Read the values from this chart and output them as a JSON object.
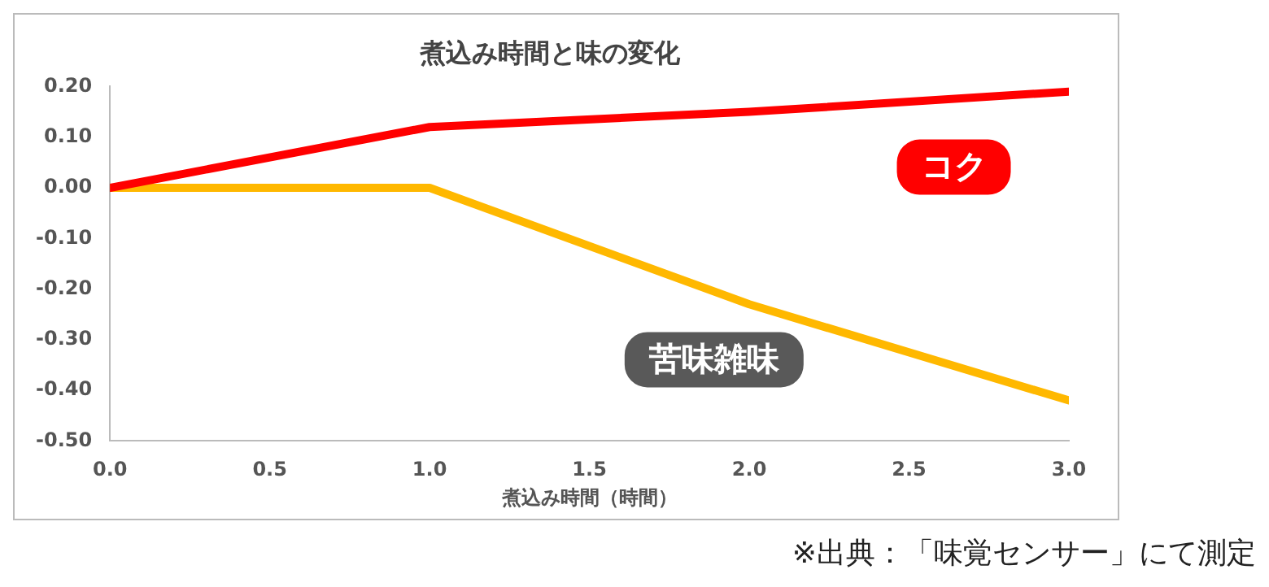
{
  "chart_data": {
    "type": "line",
    "title": "煮込み時間と味の変化",
    "xlabel": "煮込み時間（時間）",
    "x": [
      0,
      1,
      2,
      3
    ],
    "series": [
      {
        "name": "コク",
        "color": "#ff0000",
        "values": [
          0,
          0.12,
          0.15,
          0.19
        ]
      },
      {
        "name": "苦味雑味",
        "color": "#ffb800",
        "values": [
          0,
          0,
          -0.23,
          -0.42
        ]
      }
    ],
    "xlim": [
      0,
      3
    ],
    "xticks": [
      {
        "value": 0,
        "label": "0.0"
      },
      {
        "value": 0.5,
        "label": "0.5"
      },
      {
        "value": 1,
        "label": "1.0"
      },
      {
        "value": 1.5,
        "label": "1.5"
      },
      {
        "value": 2,
        "label": "2.0"
      },
      {
        "value": 2.5,
        "label": "2.5"
      },
      {
        "value": 3,
        "label": "3.0"
      }
    ],
    "ylim": [
      -0.5,
      0.2
    ],
    "yticks": [
      {
        "value": -0.5,
        "label": "-0.50"
      },
      {
        "value": -0.4,
        "label": "-0.40"
      },
      {
        "value": -0.3,
        "label": "-0.30"
      },
      {
        "value": -0.2,
        "label": "-0.20"
      },
      {
        "value": -0.1,
        "label": "-0.10"
      },
      {
        "value": 0,
        "label": "0.00"
      },
      {
        "value": 0.1,
        "label": "0.10"
      },
      {
        "value": 0.2,
        "label": "0.20"
      }
    ],
    "grid": false,
    "legend": false,
    "marker": "none",
    "line_style": "solid",
    "annotations": [
      "※出典：「味覚センサー」にて測定"
    ]
  }
}
